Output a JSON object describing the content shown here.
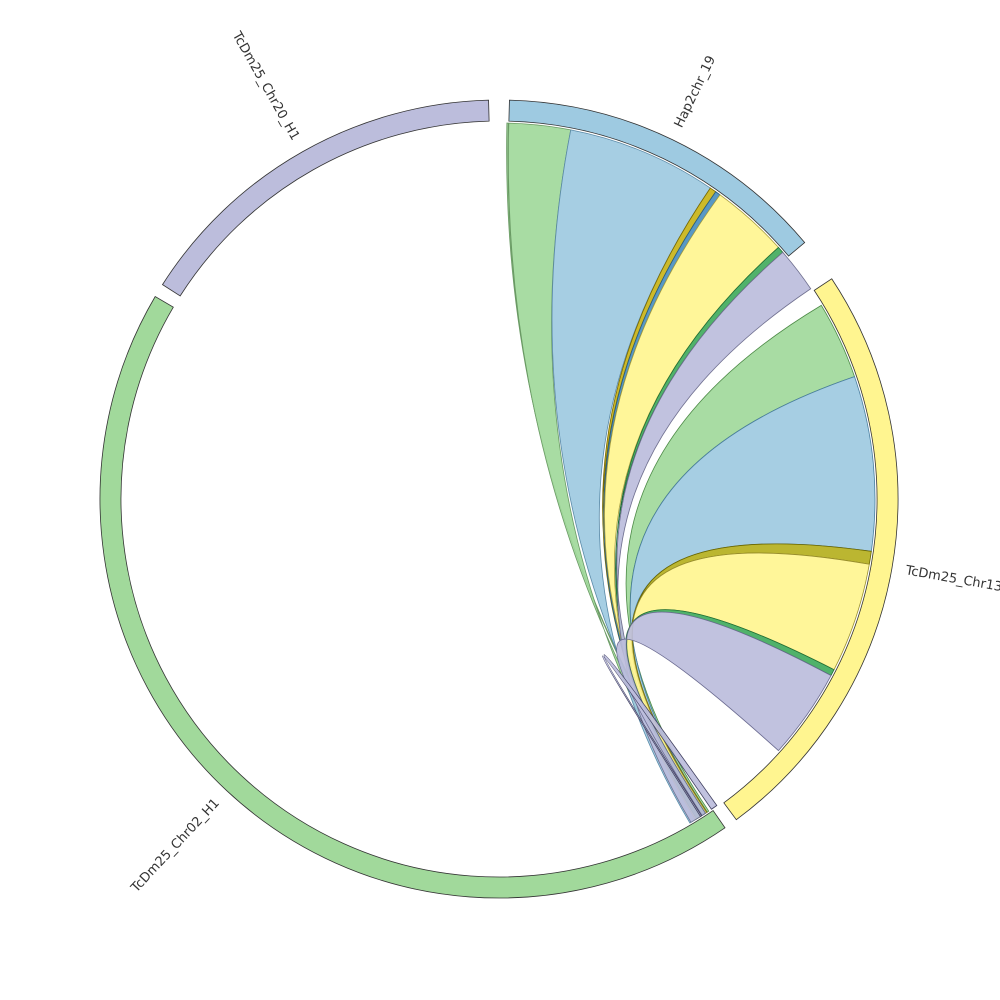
{
  "chart_data": {
    "type": "chord",
    "title": "",
    "segments": [
      {
        "id": "hap2",
        "label": "Hap2chr_19",
        "color": "#9ecae1",
        "span": [
          1.5,
          50
        ]
      },
      {
        "id": "chr13",
        "label": "TcDm25_Chr13",
        "color": "#fff590",
        "span": [
          56.5,
          143.5
        ]
      },
      {
        "id": "chr02",
        "label": "TcDm25_Chr02_H1",
        "color": "#a1d99b",
        "span": [
          145.5,
          300.5
        ]
      },
      {
        "id": "chr20",
        "label": "TcDm25_Chr20_H1",
        "color": "#bcbddc",
        "span": [
          302.5,
          358.5
        ]
      }
    ],
    "links": [
      {
        "source": "hap2",
        "from": [
          1.2,
          1.4
        ],
        "to": [
          0.8,
          1.0
        ],
        "color": "#a1d99b",
        "dark": "#6a9a64"
      },
      {
        "source": "hap2",
        "from": [
          1.5,
          11
        ],
        "to": [
          1.6,
          3
        ],
        "color": "#a1d99b",
        "dark": "#6a9a64"
      },
      {
        "source": "hap2",
        "from": [
          11,
          34.2
        ],
        "to": [
          1.8,
          4
        ],
        "color": "#9ecae1",
        "dark": "#5a8aa8"
      },
      {
        "source": "hap2",
        "from": [
          34.2,
          35.2
        ],
        "to": [
          1.8,
          2.4
        ],
        "color": "#c9b418",
        "dark": "#7a6a00"
      },
      {
        "source": "hap2",
        "from": [
          35.2,
          36
        ],
        "to": [
          1.8,
          2.4
        ],
        "color": "#4a8fc0",
        "dark": "#2a5f80"
      },
      {
        "source": "hap2",
        "from": [
          36,
          48
        ],
        "to": [
          2,
          3
        ],
        "color": "#fff590",
        "dark": "#a89f40"
      },
      {
        "source": "hap2",
        "from": [
          48,
          49
        ],
        "to": [
          2.1,
          2.8
        ],
        "color": "#41ab5d",
        "dark": "#1f6f36"
      },
      {
        "source": "hap2",
        "from": [
          49,
          56
        ],
        "to": [
          2.1,
          3.8
        ],
        "color": "#bcbddc",
        "dark": "#707090"
      },
      {
        "source": "chr13",
        "from": [
          59,
          71
        ],
        "to": [
          0.6,
          1.0
        ],
        "color": "#a1d99b",
        "dark": "#4d8a47"
      },
      {
        "source": "chr13",
        "from": [
          71,
          98
        ],
        "to": [
          0.9,
          1.4
        ],
        "color": "#9ecae1",
        "dark": "#4a7fa0"
      },
      {
        "source": "chr13",
        "from": [
          98,
          100
        ],
        "to": [
          0.9,
          1.4
        ],
        "color": "#b5b020",
        "dark": "#6a6600"
      },
      {
        "source": "chr13",
        "from": [
          100,
          117
        ],
        "to": [
          1.0,
          1.4
        ],
        "color": "#fff590",
        "dark": "#9a8f30"
      },
      {
        "source": "chr13",
        "from": [
          117,
          118
        ],
        "to": [
          1.2,
          1.6
        ],
        "color": "#41ab5d",
        "dark": "#1f6f36"
      },
      {
        "source": "chr13",
        "from": [
          118,
          132
        ],
        "to": [
          1.2,
          1.8
        ],
        "color": "#bcbddc",
        "dark": "#6a6a90"
      },
      {
        "source": "chr02",
        "from": [
          144.6,
          145.6
        ],
        "to": [
          1.9,
          2.1
        ],
        "color": "#bcbddc",
        "dark": "#404060"
      }
    ]
  }
}
